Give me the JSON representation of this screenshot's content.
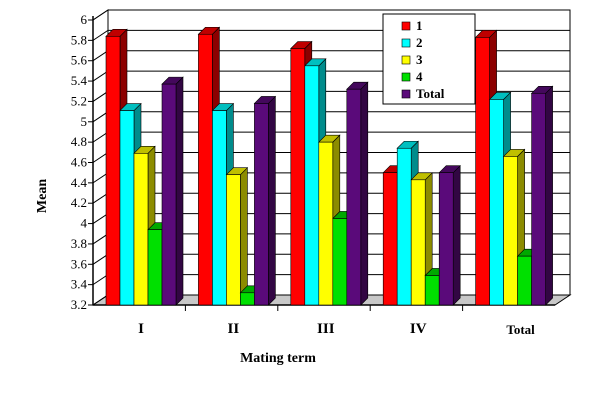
{
  "chart_data": {
    "type": "bar",
    "title": "",
    "xlabel": "Mating term",
    "ylabel": "Mean",
    "ylim": [
      3.2,
      6.0
    ],
    "ytick_step": 0.2,
    "grid": true,
    "legend_position": "top-right",
    "categories": [
      "I",
      "II",
      "III",
      "IV",
      "Total"
    ],
    "series": [
      {
        "name": "1",
        "color": "#ff0000",
        "values": [
          5.84,
          5.86,
          5.72,
          4.5,
          5.83
        ]
      },
      {
        "name": "2",
        "color": "#00ffff",
        "values": [
          5.11,
          5.11,
          5.55,
          4.74,
          5.22
        ]
      },
      {
        "name": "3",
        "color": "#ffff00",
        "values": [
          4.69,
          4.48,
          4.8,
          4.43,
          4.66
        ]
      },
      {
        "name": "4",
        "color": "#00e000",
        "values": [
          3.94,
          3.32,
          4.05,
          3.49,
          3.68
        ]
      },
      {
        "name": "Total",
        "color": "#5a0a7a",
        "values": [
          5.37,
          5.18,
          5.32,
          4.5,
          5.28
        ]
      }
    ]
  }
}
